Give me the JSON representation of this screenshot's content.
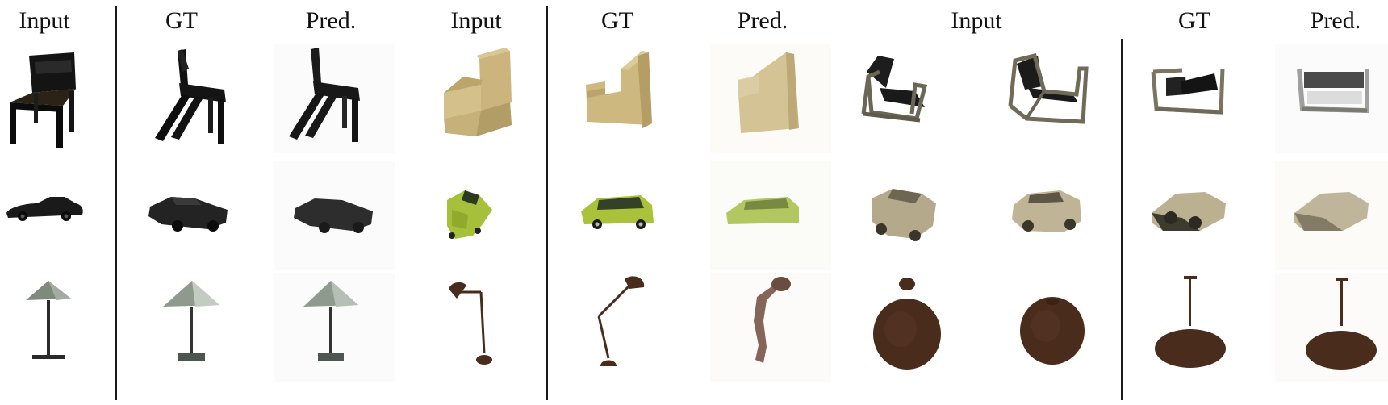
{
  "figure": {
    "group1": {
      "headers": [
        "Input",
        "GT",
        "Pred."
      ]
    },
    "group2": {
      "headers": [
        "Input",
        "GT",
        "Pred."
      ]
    },
    "group3": {
      "headers": [
        "Input",
        "GT",
        "Pred."
      ]
    },
    "rows": [
      "chair",
      "car",
      "lamp"
    ],
    "colors": {
      "black_object": "#141414",
      "tan_chair": "#c8b47a",
      "green_van": "#a8c23a",
      "beige_car": "#b8ac90",
      "brown_lamp": "#4a2c1c",
      "gray_lampshade": "#9aa39a"
    }
  }
}
